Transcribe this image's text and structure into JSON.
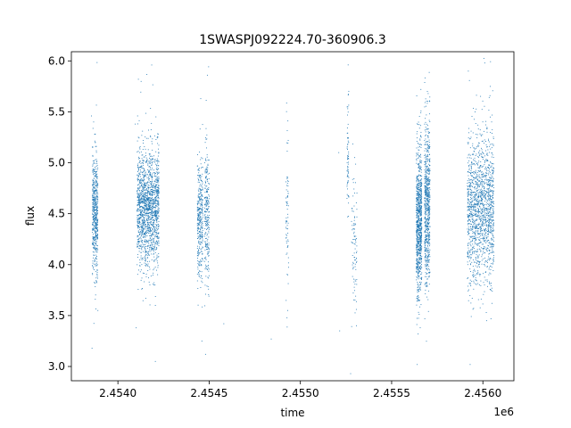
{
  "chart_data": {
    "type": "scatter",
    "title": "1SWASPJ092224.70-360906.3",
    "xlabel": "time",
    "ylabel": "flux",
    "x_offset_label": "1e6",
    "xlim": [
      2453745,
      2456170
    ],
    "ylim": [
      2.86,
      6.09
    ],
    "xticks": [
      2454000,
      2454500,
      2455000,
      2455500,
      2456000
    ],
    "xtick_labels": [
      "2.4540",
      "2.4545",
      "2.4550",
      "2.4555",
      "2.4560"
    ],
    "yticks": [
      3.0,
      3.5,
      4.0,
      4.5,
      5.0,
      5.5,
      6.0
    ],
    "ytick_labels": [
      "3.0",
      "3.5",
      "4.0",
      "4.5",
      "5.0",
      "5.5",
      "6.0"
    ],
    "grid": false,
    "marker_color": "#1f77b4",
    "series": [
      {
        "clusters": [
          {
            "x_range": [
              2453860,
              2453890
            ],
            "center": 4.5,
            "spread": 0.28,
            "count": 550
          },
          {
            "x_range": [
              2454105,
              2454225
            ],
            "center": 4.55,
            "spread": 0.28,
            "count": 1600
          },
          {
            "x_range": [
              2454435,
              2454465
            ],
            "center": 4.45,
            "spread": 0.28,
            "count": 350
          },
          {
            "x_range": [
              2454475,
              2454500
            ],
            "center": 4.5,
            "spread": 0.35,
            "count": 250
          },
          {
            "x_range": [
              2454920,
              2454935
            ],
            "center": 4.5,
            "spread": 0.4,
            "count": 70
          },
          {
            "x_range": [
              2455255,
              2455265
            ],
            "center": 5.1,
            "spread": 0.3,
            "count": 70
          },
          {
            "x_range": [
              2455280,
              2455310
            ],
            "center": 4.2,
            "spread": 0.35,
            "count": 90
          },
          {
            "x_range": [
              2455635,
              2455665
            ],
            "center": 4.4,
            "spread": 0.35,
            "count": 900
          },
          {
            "x_range": [
              2455680,
              2455710
            ],
            "center": 4.6,
            "spread": 0.4,
            "count": 700
          },
          {
            "x_range": [
              2455915,
              2456060
            ],
            "center": 4.55,
            "spread": 0.35,
            "count": 1500
          }
        ],
        "outliers": [
          [
            2453855,
            5.46
          ],
          [
            2453858,
            3.18
          ],
          [
            2453890,
            3.55
          ],
          [
            2454112,
            5.82
          ],
          [
            2454185,
            5.96
          ],
          [
            2454205,
            3.05
          ],
          [
            2454095,
            5.38
          ],
          [
            2454100,
            3.38
          ],
          [
            2454460,
            3.25
          ],
          [
            2454490,
            5.86
          ],
          [
            2454480,
            3.12
          ],
          [
            2454840,
            3.27
          ],
          [
            2454930,
            3.55
          ],
          [
            2455215,
            3.35
          ],
          [
            2455210,
            5.1
          ],
          [
            2455275,
            2.93
          ],
          [
            2455640,
            3.02
          ],
          [
            2455645,
            3.32
          ],
          [
            2455700,
            5.68
          ],
          [
            2455920,
            5.9
          ],
          [
            2455930,
            3.02
          ],
          [
            2456010,
            5.98
          ],
          [
            2456040,
            5.75
          ],
          [
            2456020,
            3.45
          ],
          [
            2456050,
            3.62
          ],
          [
            2454205,
            3.6
          ],
          [
            2455300,
            3.85
          ],
          [
            2454930,
            3.9
          ],
          [
            2454580,
            3.42
          ],
          [
            2455660,
            5.72
          ]
        ]
      }
    ]
  }
}
